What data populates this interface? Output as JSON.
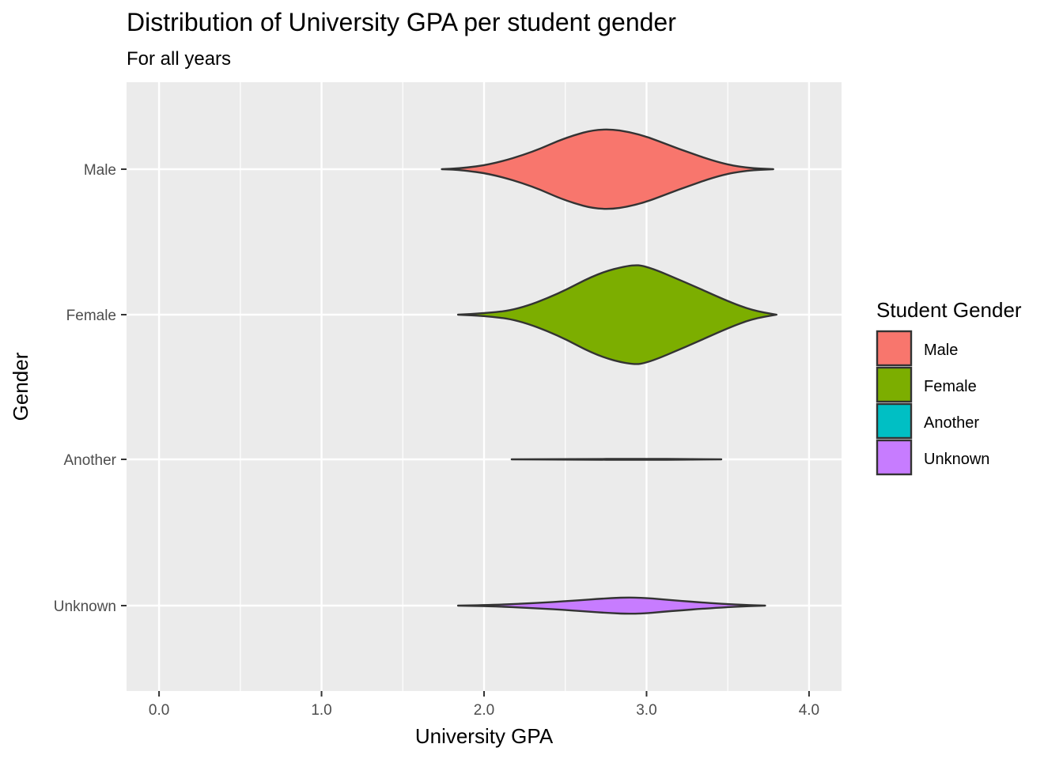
{
  "chart_data": {
    "type": "violin",
    "orientation": "horizontal",
    "title": "Distribution of University GPA per student gender",
    "subtitle": "For all years",
    "xlabel": "University GPA",
    "ylabel": "Gender",
    "xlim": [
      -0.2,
      4.2
    ],
    "x_ticks": [
      0.0,
      1.0,
      2.0,
      3.0,
      4.0
    ],
    "x_tick_labels": [
      "0.0",
      "1.0",
      "2.0",
      "3.0",
      "4.0"
    ],
    "categories": [
      "Male",
      "Female",
      "Another",
      "Unknown"
    ],
    "grid": true,
    "legend": {
      "title": "Student Gender",
      "position": "right",
      "items": [
        {
          "label": "Male",
          "color": "#F8766D"
        },
        {
          "label": "Female",
          "color": "#7CAE00"
        },
        {
          "label": "Another",
          "color": "#00BFC4"
        },
        {
          "label": "Unknown",
          "color": "#C77CFF"
        }
      ]
    },
    "series": [
      {
        "name": "Male",
        "color": "#F8766D",
        "density": [
          [
            1.74,
            0.0
          ],
          [
            1.85,
            0.01
          ],
          [
            2.05,
            0.08
          ],
          [
            2.3,
            0.28
          ],
          [
            2.5,
            0.52
          ],
          [
            2.72,
            0.68
          ],
          [
            2.95,
            0.59
          ],
          [
            3.2,
            0.33
          ],
          [
            3.45,
            0.1
          ],
          [
            3.62,
            0.02
          ],
          [
            3.78,
            0.0
          ]
        ]
      },
      {
        "name": "Female",
        "color": "#7CAE00",
        "density": [
          [
            1.84,
            0.0
          ],
          [
            2.0,
            0.02
          ],
          [
            2.2,
            0.08
          ],
          [
            2.45,
            0.33
          ],
          [
            2.7,
            0.68
          ],
          [
            2.9,
            0.82
          ],
          [
            3.0,
            0.8
          ],
          [
            3.25,
            0.52
          ],
          [
            3.5,
            0.22
          ],
          [
            3.65,
            0.07
          ],
          [
            3.8,
            0.0
          ]
        ]
      },
      {
        "name": "Another",
        "color": "#00BFC4",
        "density": [
          [
            2.17,
            0.0
          ],
          [
            2.5,
            0.004
          ],
          [
            3.0,
            0.008
          ],
          [
            3.25,
            0.004
          ],
          [
            3.46,
            0.0
          ]
        ]
      },
      {
        "name": "Unknown",
        "color": "#C77CFF",
        "density": [
          [
            1.84,
            0.0
          ],
          [
            2.05,
            0.01
          ],
          [
            2.3,
            0.04
          ],
          [
            2.55,
            0.08
          ],
          [
            2.75,
            0.12
          ],
          [
            2.93,
            0.14
          ],
          [
            3.15,
            0.09
          ],
          [
            3.4,
            0.04
          ],
          [
            3.6,
            0.01
          ],
          [
            3.73,
            0.0
          ]
        ]
      }
    ]
  }
}
